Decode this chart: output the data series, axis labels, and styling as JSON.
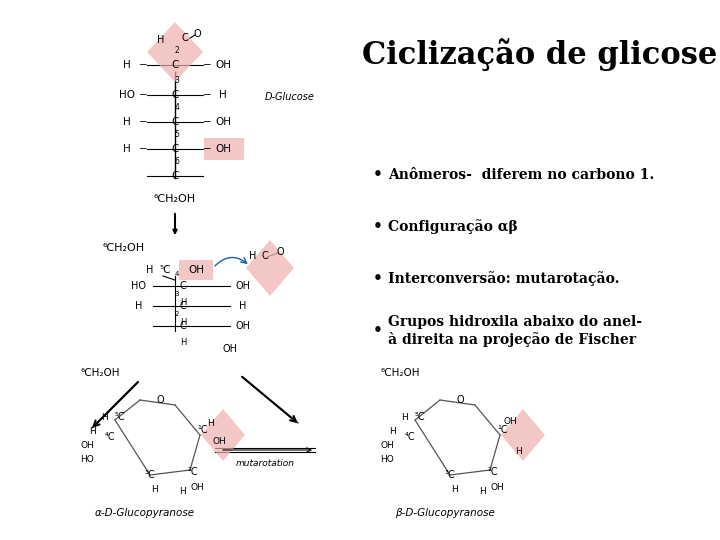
{
  "title": "Ciclização de glicose",
  "title_fontsize": 22,
  "background_color": "#ffffff",
  "bullet_points": [
    "Anômeros-  diferem no carbono 1.",
    "Configuração αβ",
    "Interconversão: mutarotação.",
    "Grupos hidroxila abaixo do anel-\nà direita na projeção de Fischer"
  ],
  "pink": "#f0b0b0",
  "pink_alpha": 0.7,
  "fig_width": 7.2,
  "fig_height": 5.4,
  "dpi": 100
}
